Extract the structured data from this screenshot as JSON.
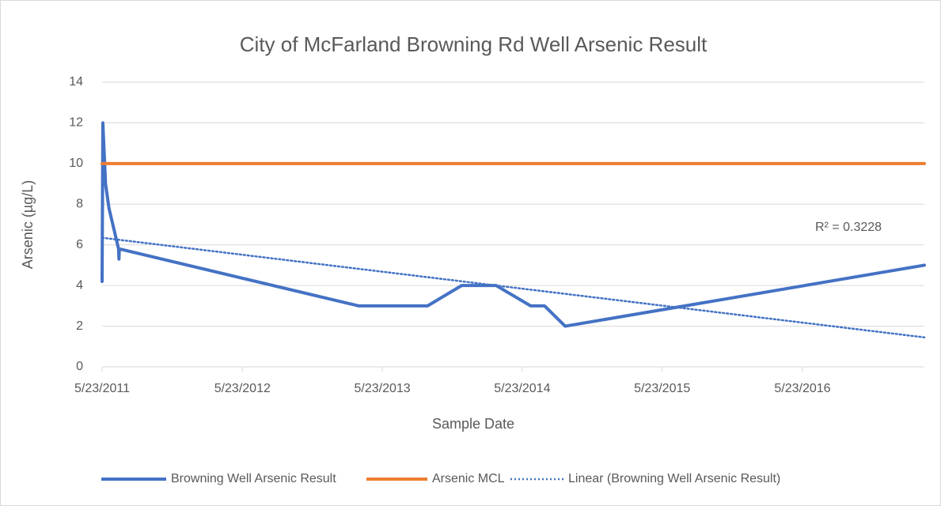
{
  "chart_data": {
    "type": "line",
    "title": "City of McFarland Browning Rd Well Arsenic Result",
    "x_label": "Sample Date",
    "y_label": "Arsenic (µg/L)",
    "annotation": "R² = 0.3228",
    "series": [
      {
        "name": "Browning Well Arsenic Result",
        "color": "#4472c4",
        "style": "solid",
        "x": [
          "5/23/2011",
          "5/25/2011",
          "6/1/2011",
          "6/10/2011",
          "7/5/2011",
          "7/6/2011",
          "7/7/2011",
          "3/22/2013",
          "9/18/2013",
          "12/16/2013",
          "3/16/2014",
          "6/14/2014",
          "7/20/2014",
          "9/12/2014",
          "4/6/2017"
        ],
        "values": [
          4.2,
          12,
          9,
          7.8,
          5.8,
          5.3,
          5.8,
          3,
          3,
          4,
          4,
          3,
          3,
          2,
          5
        ]
      },
      {
        "name": "Arsenic MCL",
        "color": "#ed7d31",
        "style": "solid",
        "x": [
          "5/23/2011",
          "4/6/2017"
        ],
        "values": [
          10,
          10
        ]
      },
      {
        "name": "Linear (Browning Well Arsenic Result)",
        "color": "#4472c4",
        "style": "dotted",
        "x": [
          "5/23/2011",
          "4/6/2017"
        ],
        "values": [
          6.35,
          1.45
        ]
      }
    ],
    "xlim": [
      "5/23/2011",
      "4/6/2017"
    ],
    "xticks": [
      "5/23/2011",
      "5/23/2012",
      "5/23/2013",
      "5/23/2014",
      "5/23/2015",
      "5/23/2016"
    ],
    "ylim": [
      0,
      14
    ],
    "yticks": [
      0,
      2,
      4,
      6,
      8,
      10,
      12,
      14
    ],
    "grid": true,
    "legend": "bottom"
  }
}
